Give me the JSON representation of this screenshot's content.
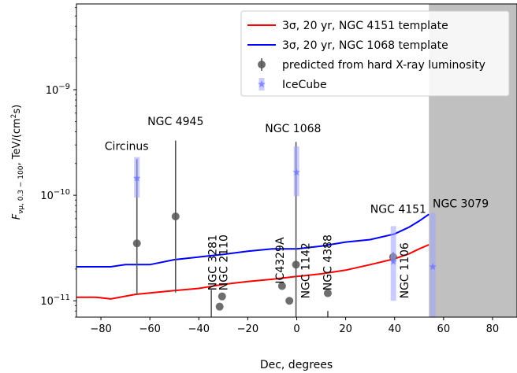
{
  "chart_data": {
    "type": "scatter",
    "xlabel": "Dec, degrees",
    "ylabel": "F_{νμ, 0.3 − 100}, TeV/(cm²s)",
    "ylabel_parts": {
      "main": "F",
      "sub": "νμ, 0.3 − 100",
      "units": ", TeV/(cm",
      "units_sup": "2",
      "units_end": "s)"
    },
    "yscale": "log",
    "xlim": [
      -90,
      90
    ],
    "ylim": [
      7e-12,
      6.5e-09
    ],
    "xticks": [
      -80,
      -60,
      -40,
      -20,
      0,
      20,
      40,
      60,
      80
    ],
    "xtick_labels": [
      "−80",
      "−60",
      "−40",
      "−20",
      "0",
      "20",
      "40",
      "60",
      "80"
    ],
    "yticks": [
      1e-11,
      1e-10,
      1e-09
    ],
    "ytick_labels": [
      {
        "base": "10",
        "exp": "−11"
      },
      {
        "base": "10",
        "exp": "−10"
      },
      {
        "base": "10",
        "exp": "−9"
      }
    ],
    "shaded_region": {
      "x_from": 54,
      "x_to": 90,
      "color": "#c0c0c0"
    },
    "legend": {
      "position": "top-right",
      "entries": [
        {
          "label": "3σ, 20 yr, NGC 4151 template",
          "marker": "line",
          "color": "#ff0000"
        },
        {
          "label": "3σ, 20 yr, NGC 1068 template",
          "marker": "line",
          "color": "#0000ff"
        },
        {
          "label": "predicted from hard X-ray luminosity",
          "marker": "errorbar-circle",
          "color": "#555555"
        },
        {
          "label": "IceCube",
          "marker": "errorbar-star",
          "color": "#9ea2ff"
        }
      ]
    },
    "series": [
      {
        "name": "3σ, 20 yr, NGC 4151 template",
        "kind": "line",
        "color": "#ff0000",
        "points": [
          [
            -90,
            1.08e-11
          ],
          [
            -82,
            1.08e-11
          ],
          [
            -76,
            1.04e-11
          ],
          [
            -66,
            1.15e-11
          ],
          [
            -50,
            1.25e-11
          ],
          [
            -40,
            1.31e-11
          ],
          [
            -30,
            1.43e-11
          ],
          [
            -20,
            1.52e-11
          ],
          [
            -10,
            1.6e-11
          ],
          [
            0,
            1.7e-11
          ],
          [
            10,
            1.8e-11
          ],
          [
            20,
            1.95e-11
          ],
          [
            30,
            2.2e-11
          ],
          [
            40,
            2.5e-11
          ],
          [
            46,
            2.8e-11
          ],
          [
            50,
            3.1e-11
          ],
          [
            54,
            3.4e-11
          ]
        ]
      },
      {
        "name": "3σ, 20 yr, NGC 1068 template",
        "kind": "line",
        "color": "#0000ff",
        "points": [
          [
            -90,
            2.1e-11
          ],
          [
            -76,
            2.1e-11
          ],
          [
            -70,
            2.2e-11
          ],
          [
            -60,
            2.2e-11
          ],
          [
            -50,
            2.45e-11
          ],
          [
            -40,
            2.6e-11
          ],
          [
            -30,
            2.75e-11
          ],
          [
            -20,
            2.95e-11
          ],
          [
            -10,
            3.1e-11
          ],
          [
            0,
            3.1e-11
          ],
          [
            10,
            3.3e-11
          ],
          [
            20,
            3.6e-11
          ],
          [
            30,
            3.8e-11
          ],
          [
            40,
            4.3e-11
          ],
          [
            46,
            5e-11
          ],
          [
            50,
            5.7e-11
          ],
          [
            54,
            6.6e-11
          ]
        ]
      },
      {
        "name": "predicted from hard X-ray luminosity",
        "kind": "errorbar",
        "color": "#555555",
        "points": [
          {
            "label": "Circinus",
            "x": -65.3,
            "y": 3.5e-11,
            "ylo": 1.15e-11,
            "yhi": 2.2e-10
          },
          {
            "label": "NGC 4945",
            "x": -49.5,
            "y": 6.3e-11,
            "ylo": 1.2e-11,
            "yhi": 3.3e-10
          },
          {
            "label": "NGC 3281",
            "x": -34.9,
            "y": 6.3e-12,
            "ylo": 4.5e-12,
            "yhi": 1.27e-11
          },
          {
            "label": "NGC 2110",
            "x": -7.5,
            "y": 6.3e-12,
            "ylo": 4.5e-12,
            "yhi": 6.3e-12,
            "hidden_label": true
          },
          {
            "label": "",
            "x": -33,
            "y": 6.3e-12,
            "ylo": 4.5e-12,
            "yhi": 6.3e-12
          },
          {
            "label": "",
            "x": -31.5,
            "y": 8.8e-12,
            "ylo": 8.8e-12,
            "yhi": 8.8e-12
          },
          {
            "label": "",
            "x": -30.5,
            "y": 1.1e-11,
            "ylo": 1.1e-11,
            "yhi": 1.1e-11
          },
          {
            "label": "IC4329A",
            "x": -6,
            "y": 1.38e-11,
            "ylo": 1.38e-11,
            "yhi": 1.38e-11
          },
          {
            "label": "",
            "x": -3,
            "y": 1e-11,
            "ylo": 1e-11,
            "yhi": 1e-11
          },
          {
            "label": "NGC 1068",
            "x": -0.3,
            "y": 2.2e-11,
            "ylo": 5e-12,
            "yhi": 3.2e-10
          },
          {
            "label": "NGC 4388",
            "x": 12.7,
            "y": 1.18e-11,
            "ylo": 5e-12,
            "yhi": 8e-12
          },
          {
            "label": "NGC 4151",
            "x": 39.4,
            "y": 2.6e-11,
            "ylo": 2.3e-11,
            "yhi": 2.9e-11
          },
          {
            "label": "NGC 3079",
            "x": 55.7,
            "y": 6.3e-12,
            "ylo": 4.5e-12,
            "yhi": 6.3e-12
          }
        ]
      },
      {
        "name": "IceCube",
        "kind": "errorbar",
        "color": "#9ea2ff",
        "points": [
          {
            "label": "Circinus",
            "x": -65.3,
            "y": 1.45e-10,
            "ylo": 9.5e-11,
            "yhi": 2.3e-10
          },
          {
            "label": "NGC 1068",
            "x": -0.1,
            "y": 1.65e-10,
            "ylo": 9.8e-11,
            "yhi": 2.9e-10
          },
          {
            "label": "NGC 4151",
            "x": 39.5,
            "y": 2.35e-11,
            "ylo": 1e-11,
            "yhi": 5.1e-11
          },
          {
            "label": "NGC 3079",
            "x": 55.6,
            "y": 2.1e-11,
            "ylo": 5e-12,
            "yhi": 6.8e-11
          }
        ]
      }
    ],
    "annotations": [
      {
        "text": "Circinus",
        "x": -69.5,
        "y": 2.7e-10,
        "rotate": false
      },
      {
        "text": "NGC 4945",
        "x": -49.5,
        "y": 4.6e-10,
        "rotate": false
      },
      {
        "text": "NGC 1068",
        "x": -1.5,
        "y": 3.95e-10,
        "rotate": false
      },
      {
        "text": "NGC 4151",
        "x": 41.5,
        "y": 6.8e-11,
        "rotate": false
      },
      {
        "text": "NGC 3079",
        "x": 67,
        "y": 7.7e-11,
        "rotate": false
      },
      {
        "text": "NGC 3281",
        "x": -34.5,
        "y": 1.25e-11,
        "rotate": true
      },
      {
        "text": "NGC 2110",
        "x": -30,
        "y": 1.25e-11,
        "rotate": true
      },
      {
        "text": "IC4329A",
        "x": -7,
        "y": 1.45e-11,
        "rotate": true
      },
      {
        "text": "NGC 1142",
        "x": 3.5,
        "y": 1.05e-11,
        "rotate": true
      },
      {
        "text": "NGC 4388",
        "x": 12.5,
        "y": 1.25e-11,
        "rotate": true
      },
      {
        "text": "NGC 1106",
        "x": 44,
        "y": 1.05e-11,
        "rotate": true
      }
    ]
  }
}
